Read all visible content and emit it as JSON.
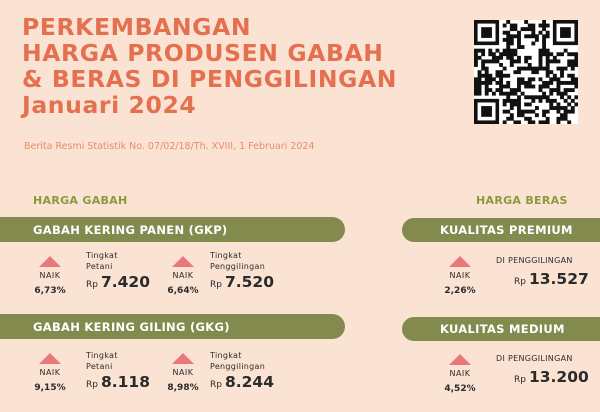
{
  "header": {
    "title_lines": [
      "PERKEMBANGAN",
      "HARGA PRODUSEN GABAH",
      "& BERAS DI PENGGILINGAN",
      "Januari 2024"
    ],
    "subtitle": "Berita Resmi Statistik No. 07/02/18/Th. XVIII, 1 Februari 2024"
  },
  "gabah": {
    "section_label": "HARGA GABAH",
    "gkp": {
      "title": "GABAH KERING PANEN (GKP)",
      "petani": {
        "status": "NAIK",
        "change": "6,73%",
        "caption1": "Tingkat",
        "caption2": "Petani",
        "currency": "Rp",
        "price": "7.420"
      },
      "penggilingan": {
        "status": "NAIK",
        "change": "6,64%",
        "caption1": "Tingkat",
        "caption2": "Penggilingan",
        "currency": "Rp",
        "price": "7.520"
      }
    },
    "gkg": {
      "title": "GABAH KERING GILING (GKG)",
      "petani": {
        "status": "NAIK",
        "change": "9,15%",
        "caption1": "Tingkat",
        "caption2": "Petani",
        "currency": "Rp",
        "price": "8.118"
      },
      "penggilingan": {
        "status": "NAIK",
        "change": "8,98%",
        "caption1": "Tingkat",
        "caption2": "Penggilingan",
        "currency": "Rp",
        "price": "8.244"
      }
    }
  },
  "beras": {
    "section_label": "HARGA BERAS",
    "premium": {
      "title": "KUALITAS PREMIUM",
      "status": "NAIK",
      "change": "2,26%",
      "caption": "DI PENGGILINGAN",
      "currency": "Rp",
      "price": "13.527"
    },
    "medium": {
      "title": "KUALITAS MEDIUM",
      "status": "NAIK",
      "change": "4,52%",
      "caption": "DI PENGGILINGAN",
      "currency": "Rp",
      "price": "13.200"
    }
  },
  "colors": {
    "accent": "#e4704f",
    "bar": "#838a4e",
    "up_arrow": "#e8787a",
    "background": "#fbe3d3"
  },
  "icons": {
    "qr": "qr-code-icon",
    "up": "triangle-up-icon"
  }
}
